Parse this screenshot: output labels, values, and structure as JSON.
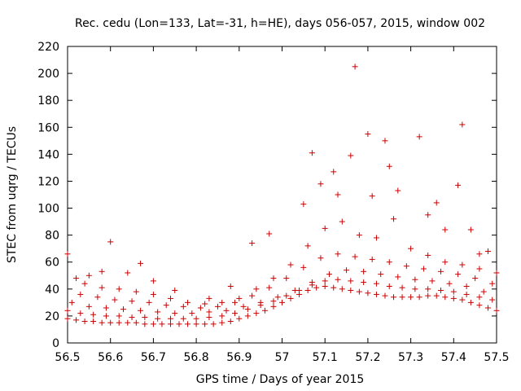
{
  "chart_data": {
    "type": "scatter",
    "title": "Rec. cedu (Lon=133, Lat=-31, h=HE), days 056-057, 2015, window 002",
    "xlabel": "GPS time / Days of year 2015",
    "ylabel": "STEC from uqrg / TECUs",
    "xlim": [
      56.5,
      57.5
    ],
    "ylim": [
      0,
      220
    ],
    "xticks": [
      "56.5",
      "56.6",
      "56.7",
      "56.8",
      "56.9",
      "57",
      "57.1",
      "57.2",
      "57.3",
      "57.4",
      "57.5"
    ],
    "yticks": [
      "0",
      "20",
      "40",
      "60",
      "80",
      "100",
      "120",
      "140",
      "160",
      "180",
      "200",
      "220"
    ],
    "marker": "+",
    "color": "#cc0000",
    "grid": false,
    "series": [
      {
        "name": "STEC",
        "x": [
          56.5,
          56.52,
          56.54,
          56.56,
          56.58,
          56.6,
          56.62,
          56.64,
          56.66,
          56.68,
          56.7,
          56.72,
          56.74,
          56.76,
          56.78,
          56.8,
          56.82,
          56.84,
          56.86,
          56.88,
          56.9,
          56.92,
          56.94,
          56.96,
          56.98,
          57.0,
          57.02,
          57.04,
          57.06,
          57.08,
          57.1,
          57.12,
          57.14,
          57.16,
          57.18,
          57.2,
          57.22,
          57.24,
          57.26,
          57.28,
          57.3,
          57.32,
          57.34,
          57.36,
          57.38,
          57.4,
          57.42,
          57.44,
          57.46,
          57.48,
          57.5,
          56.5,
          56.53,
          56.56,
          56.59,
          56.62,
          56.65,
          56.68,
          56.71,
          56.74,
          56.77,
          56.8,
          56.83,
          56.86,
          56.89,
          56.92,
          56.95,
          56.98,
          57.01,
          57.04,
          57.07,
          57.1,
          57.13,
          57.16,
          57.19,
          57.22,
          57.25,
          57.28,
          57.31,
          57.34,
          57.37,
          57.4,
          57.43,
          57.46,
          57.49,
          56.51,
          56.55,
          56.59,
          56.63,
          56.67,
          56.71,
          56.75,
          56.79,
          56.83,
          56.87,
          56.91,
          56.95,
          56.99,
          57.03,
          57.07,
          57.11,
          57.15,
          57.19,
          57.23,
          57.27,
          57.31,
          57.35,
          57.39,
          57.43,
          57.47,
          56.5,
          56.52,
          56.55,
          56.58,
          56.6,
          56.64,
          56.67,
          56.7,
          56.75,
          56.83,
          56.88,
          56.93,
          56.97,
          57.05,
          57.07,
          57.09,
          57.12,
          57.13,
          57.16,
          57.17,
          57.2,
          57.21,
          57.24,
          57.25,
          57.27,
          57.32,
          57.34,
          57.36,
          57.38,
          57.41,
          57.42,
          57.44,
          57.46,
          57.48,
          56.53,
          56.57,
          56.61,
          56.65,
          56.69,
          56.73,
          56.77,
          56.81,
          56.85,
          56.89,
          56.93,
          56.97,
          57.01,
          57.05,
          57.09,
          57.13,
          57.17,
          57.21,
          57.25,
          57.29,
          57.33,
          57.37,
          57.41,
          57.45,
          57.49,
          56.54,
          56.58,
          56.62,
          56.66,
          56.7,
          56.74,
          56.78,
          56.82,
          56.86,
          56.9,
          56.94,
          56.98,
          57.02,
          57.06,
          57.1,
          57.14,
          57.18,
          57.22,
          57.26,
          57.3,
          57.34,
          57.38,
          57.42,
          57.46,
          57.5
        ],
        "y": [
          18,
          17,
          16,
          16,
          15,
          15,
          15,
          15,
          15,
          14,
          14,
          14,
          14,
          14,
          14,
          14,
          14,
          14,
          15,
          16,
          18,
          20,
          22,
          24,
          27,
          30,
          33,
          36,
          39,
          41,
          42,
          41,
          40,
          39,
          38,
          37,
          36,
          35,
          34,
          34,
          34,
          34,
          35,
          35,
          34,
          33,
          32,
          30,
          28,
          26,
          24,
          24,
          22,
          21,
          20,
          20,
          19,
          19,
          18,
          18,
          18,
          18,
          19,
          20,
          22,
          25,
          28,
          31,
          35,
          39,
          43,
          46,
          47,
          46,
          45,
          44,
          42,
          41,
          40,
          40,
          39,
          38,
          36,
          34,
          32,
          30,
          27,
          26,
          25,
          24,
          23,
          22,
          22,
          23,
          24,
          27,
          30,
          34,
          39,
          45,
          51,
          54,
          53,
          51,
          49,
          47,
          46,
          44,
          42,
          38,
          66,
          48,
          50,
          53,
          75,
          52,
          59,
          46,
          39,
          33,
          42,
          74,
          81,
          103,
          141,
          118,
          127,
          110,
          139,
          205,
          155,
          109,
          150,
          131,
          113,
          153,
          95,
          104,
          84,
          117,
          162,
          84,
          66,
          68,
          36,
          34,
          32,
          31,
          30,
          28,
          27,
          26,
          27,
          30,
          35,
          41,
          48,
          56,
          63,
          66,
          64,
          62,
          60,
          57,
          55,
          53,
          51,
          48,
          44,
          44,
          41,
          40,
          38,
          36,
          33,
          30,
          29,
          30,
          33,
          40,
          48,
          58,
          72,
          85,
          90,
          80,
          78,
          92,
          70,
          65,
          60,
          58,
          55,
          52
        ]
      }
    ]
  }
}
